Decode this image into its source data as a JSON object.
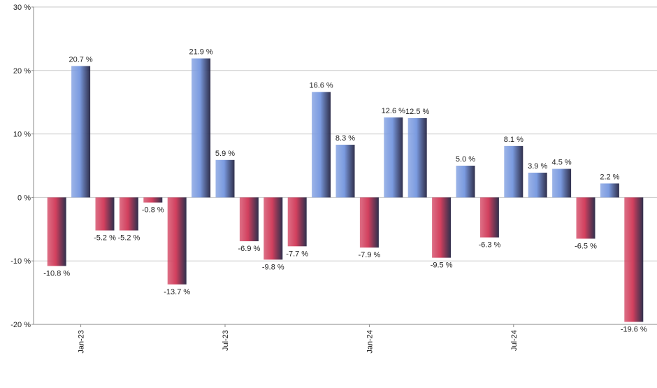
{
  "chart_data": {
    "type": "bar",
    "categories": [
      null,
      "Jan-23",
      null,
      null,
      null,
      null,
      null,
      "Jul-23",
      null,
      null,
      null,
      null,
      null,
      "Jan-24",
      null,
      null,
      null,
      null,
      null,
      "Jul-24",
      null,
      null,
      null,
      null,
      null
    ],
    "values": [
      -10.8,
      20.7,
      -5.2,
      -5.2,
      -0.8,
      -13.7,
      21.9,
      5.9,
      -6.9,
      -9.8,
      -7.7,
      16.6,
      8.3,
      -7.9,
      12.6,
      12.5,
      -9.5,
      5.0,
      -6.3,
      8.1,
      3.9,
      4.5,
      -6.5,
      2.2,
      -19.6
    ],
    "value_labels": [
      "-10.8 %",
      "20.7 %",
      "-5.2 %",
      "-5.2 %",
      "-0.8 %",
      "-13.7 %",
      "21.9 %",
      "5.9 %",
      "-6.9 %",
      "-9.8 %",
      "-7.7 %",
      "16.6 %",
      "8.3 %",
      "-7.9 %",
      "12.6 %",
      "12.5 %",
      "-9.5 %",
      "5.0 %",
      "-6.3 %",
      "8.1 %",
      "3.9 %",
      "4.5 %",
      "-6.5 %",
      "2.2 %",
      "-19.6 %"
    ],
    "color": "#7b9be0",
    "negative_color": "#d2405e",
    "ylim": [
      -20,
      30
    ],
    "yticks": [
      {
        "value": -20,
        "label": "-20 %"
      },
      {
        "value": -10,
        "label": "-10 %"
      },
      {
        "value": 0,
        "label": "0 %"
      },
      {
        "value": 10,
        "label": "10 %"
      },
      {
        "value": 20,
        "label": "20 %"
      },
      {
        "value": 30,
        "label": "30 %"
      }
    ],
    "grid": true
  }
}
